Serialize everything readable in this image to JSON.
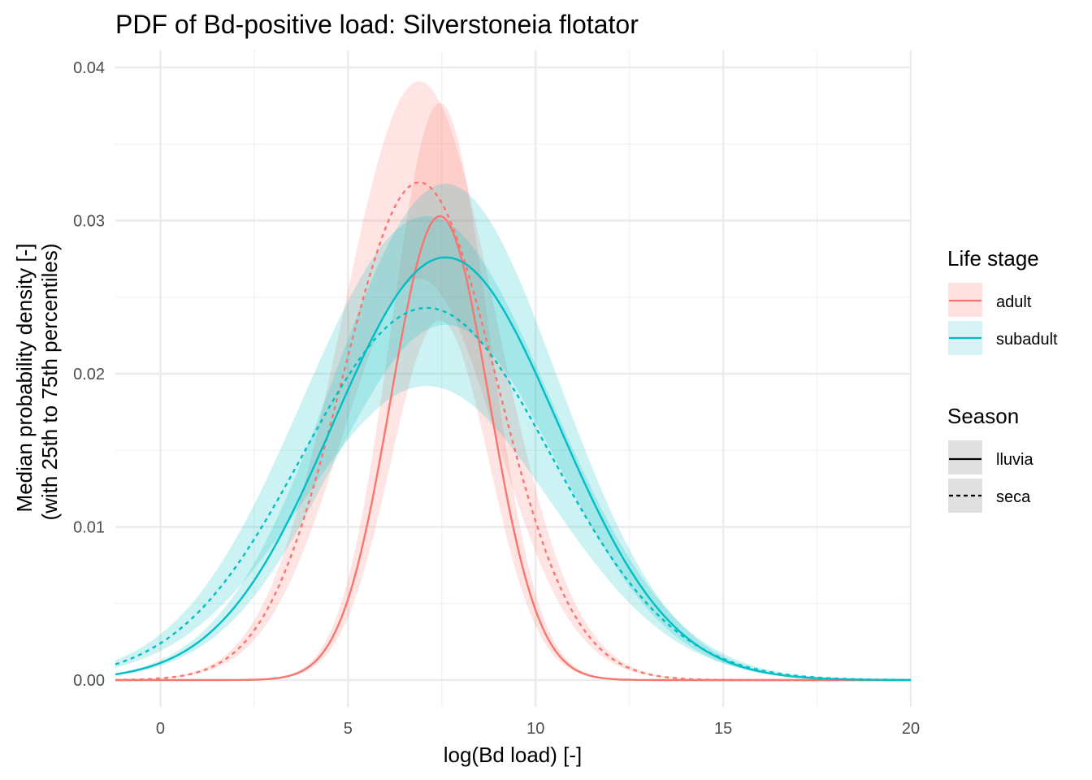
{
  "chart_data": {
    "type": "line",
    "title": "PDF of Bd-positive load: Silverstoneia flotator",
    "xlabel": "log(Bd load) [-]",
    "ylabel_line1": "Median probability density [-]",
    "ylabel_line2": "(with 25th to 75th percentiles)",
    "xlim": [
      -1.2,
      20
    ],
    "ylim": [
      0,
      0.04
    ],
    "x_ticks": [
      0,
      5,
      10,
      15,
      20
    ],
    "x_tick_labels": [
      "0",
      "5",
      "10",
      "15",
      "20"
    ],
    "y_ticks": [
      0,
      0.01,
      0.02,
      0.03,
      0.04
    ],
    "y_tick_labels": [
      "0.00",
      "0.01",
      "0.02",
      "0.03",
      "0.04"
    ],
    "grid": true,
    "legend_placement": "right",
    "legends": {
      "life_stage": {
        "title": "Life stage",
        "items": [
          {
            "label": "adult",
            "color": "#F8766D",
            "fill": "#FFE1DF"
          },
          {
            "label": "subadult",
            "color": "#00BFC4",
            "fill": "#D9F3F4"
          }
        ]
      },
      "season": {
        "title": "Season",
        "items": [
          {
            "label": "lluvia",
            "linetype": "solid"
          },
          {
            "label": "seca",
            "linetype": "dashed"
          }
        ]
      }
    },
    "series": [
      {
        "life_stage": "adult",
        "season": "lluvia",
        "color": "#F8766D",
        "linetype": "solid",
        "mu": 7.45,
        "sigma": 1.31,
        "peak": 0.0303,
        "lower_peak": 0.0235,
        "upper_peak": 0.0377
      },
      {
        "life_stage": "adult",
        "season": "seca",
        "color": "#F8766D",
        "linetype": "dashed",
        "mu": 6.9,
        "sigma": 2.05,
        "peak": 0.0325,
        "lower_peak": 0.0262,
        "upper_peak": 0.0391
      },
      {
        "life_stage": "subadult",
        "season": "lluvia",
        "color": "#00BFC4",
        "linetype": "solid",
        "mu": 7.6,
        "sigma": 3.0,
        "peak": 0.0276,
        "lower_peak": 0.0232,
        "upper_peak": 0.0324
      },
      {
        "life_stage": "subadult",
        "season": "seca",
        "color": "#00BFC4",
        "linetype": "dashed",
        "mu": 7.1,
        "sigma": 3.3,
        "peak": 0.0243,
        "lower_peak": 0.0192,
        "upper_peak": 0.0303
      }
    ]
  }
}
